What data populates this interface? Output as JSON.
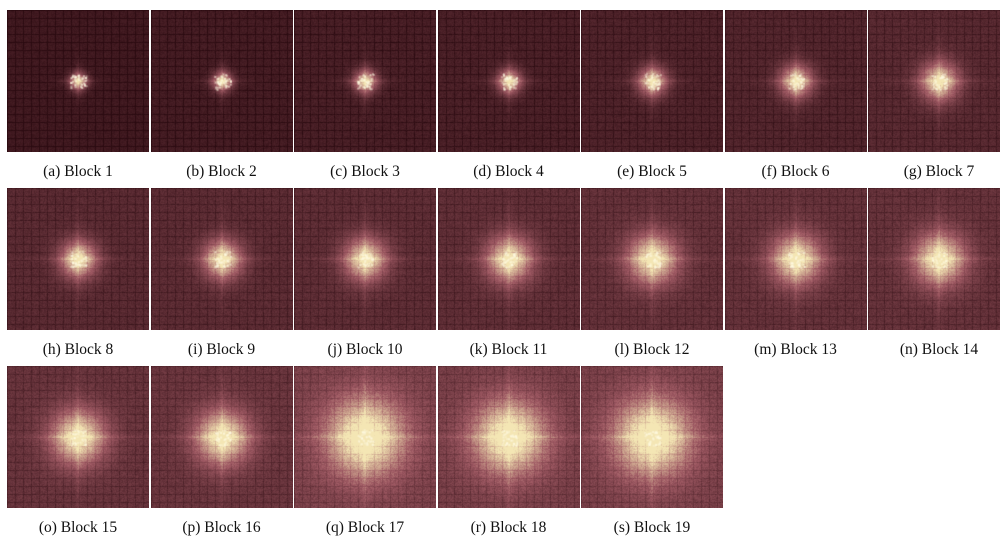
{
  "figure": {
    "panels": [
      {
        "caption": "(a) Block 1",
        "spread": 0.045,
        "brightness": 0.18
      },
      {
        "caption": "(b) Block 2",
        "spread": 0.05,
        "brightness": 0.22
      },
      {
        "caption": "(c) Block 3",
        "spread": 0.06,
        "brightness": 0.26
      },
      {
        "caption": "(d) Block 4",
        "spread": 0.062,
        "brightness": 0.28
      },
      {
        "caption": "(e) Block 5",
        "spread": 0.075,
        "brightness": 0.32
      },
      {
        "caption": "(f) Block 6",
        "spread": 0.085,
        "brightness": 0.36
      },
      {
        "caption": "(g) Block 7",
        "spread": 0.1,
        "brightness": 0.42
      },
      {
        "caption": "(h) Block 8",
        "spread": 0.095,
        "brightness": 0.44
      },
      {
        "caption": "(i) Block 9",
        "spread": 0.1,
        "brightness": 0.46
      },
      {
        "caption": "(j) Block 10",
        "spread": 0.11,
        "brightness": 0.48
      },
      {
        "caption": "(k) Block 11",
        "spread": 0.12,
        "brightness": 0.5
      },
      {
        "caption": "(l) Block 12",
        "spread": 0.13,
        "brightness": 0.54
      },
      {
        "caption": "(m) Block 13",
        "spread": 0.13,
        "brightness": 0.55
      },
      {
        "caption": "(n) Block 14",
        "spread": 0.135,
        "brightness": 0.56
      },
      {
        "caption": "(o) Block 15",
        "spread": 0.14,
        "brightness": 0.58
      },
      {
        "caption": "(p) Block 16",
        "spread": 0.14,
        "brightness": 0.6
      },
      {
        "caption": "(q) Block 17",
        "spread": 0.2,
        "brightness": 0.78
      },
      {
        "caption": "(r) Block 18",
        "spread": 0.19,
        "brightness": 0.74
      },
      {
        "caption": "(s) Block 19",
        "spread": 0.2,
        "brightness": 0.76
      }
    ],
    "colormap": {
      "dark": "#2a0a10",
      "mid": "#a05a64",
      "light": "#f4e6b4"
    }
  }
}
